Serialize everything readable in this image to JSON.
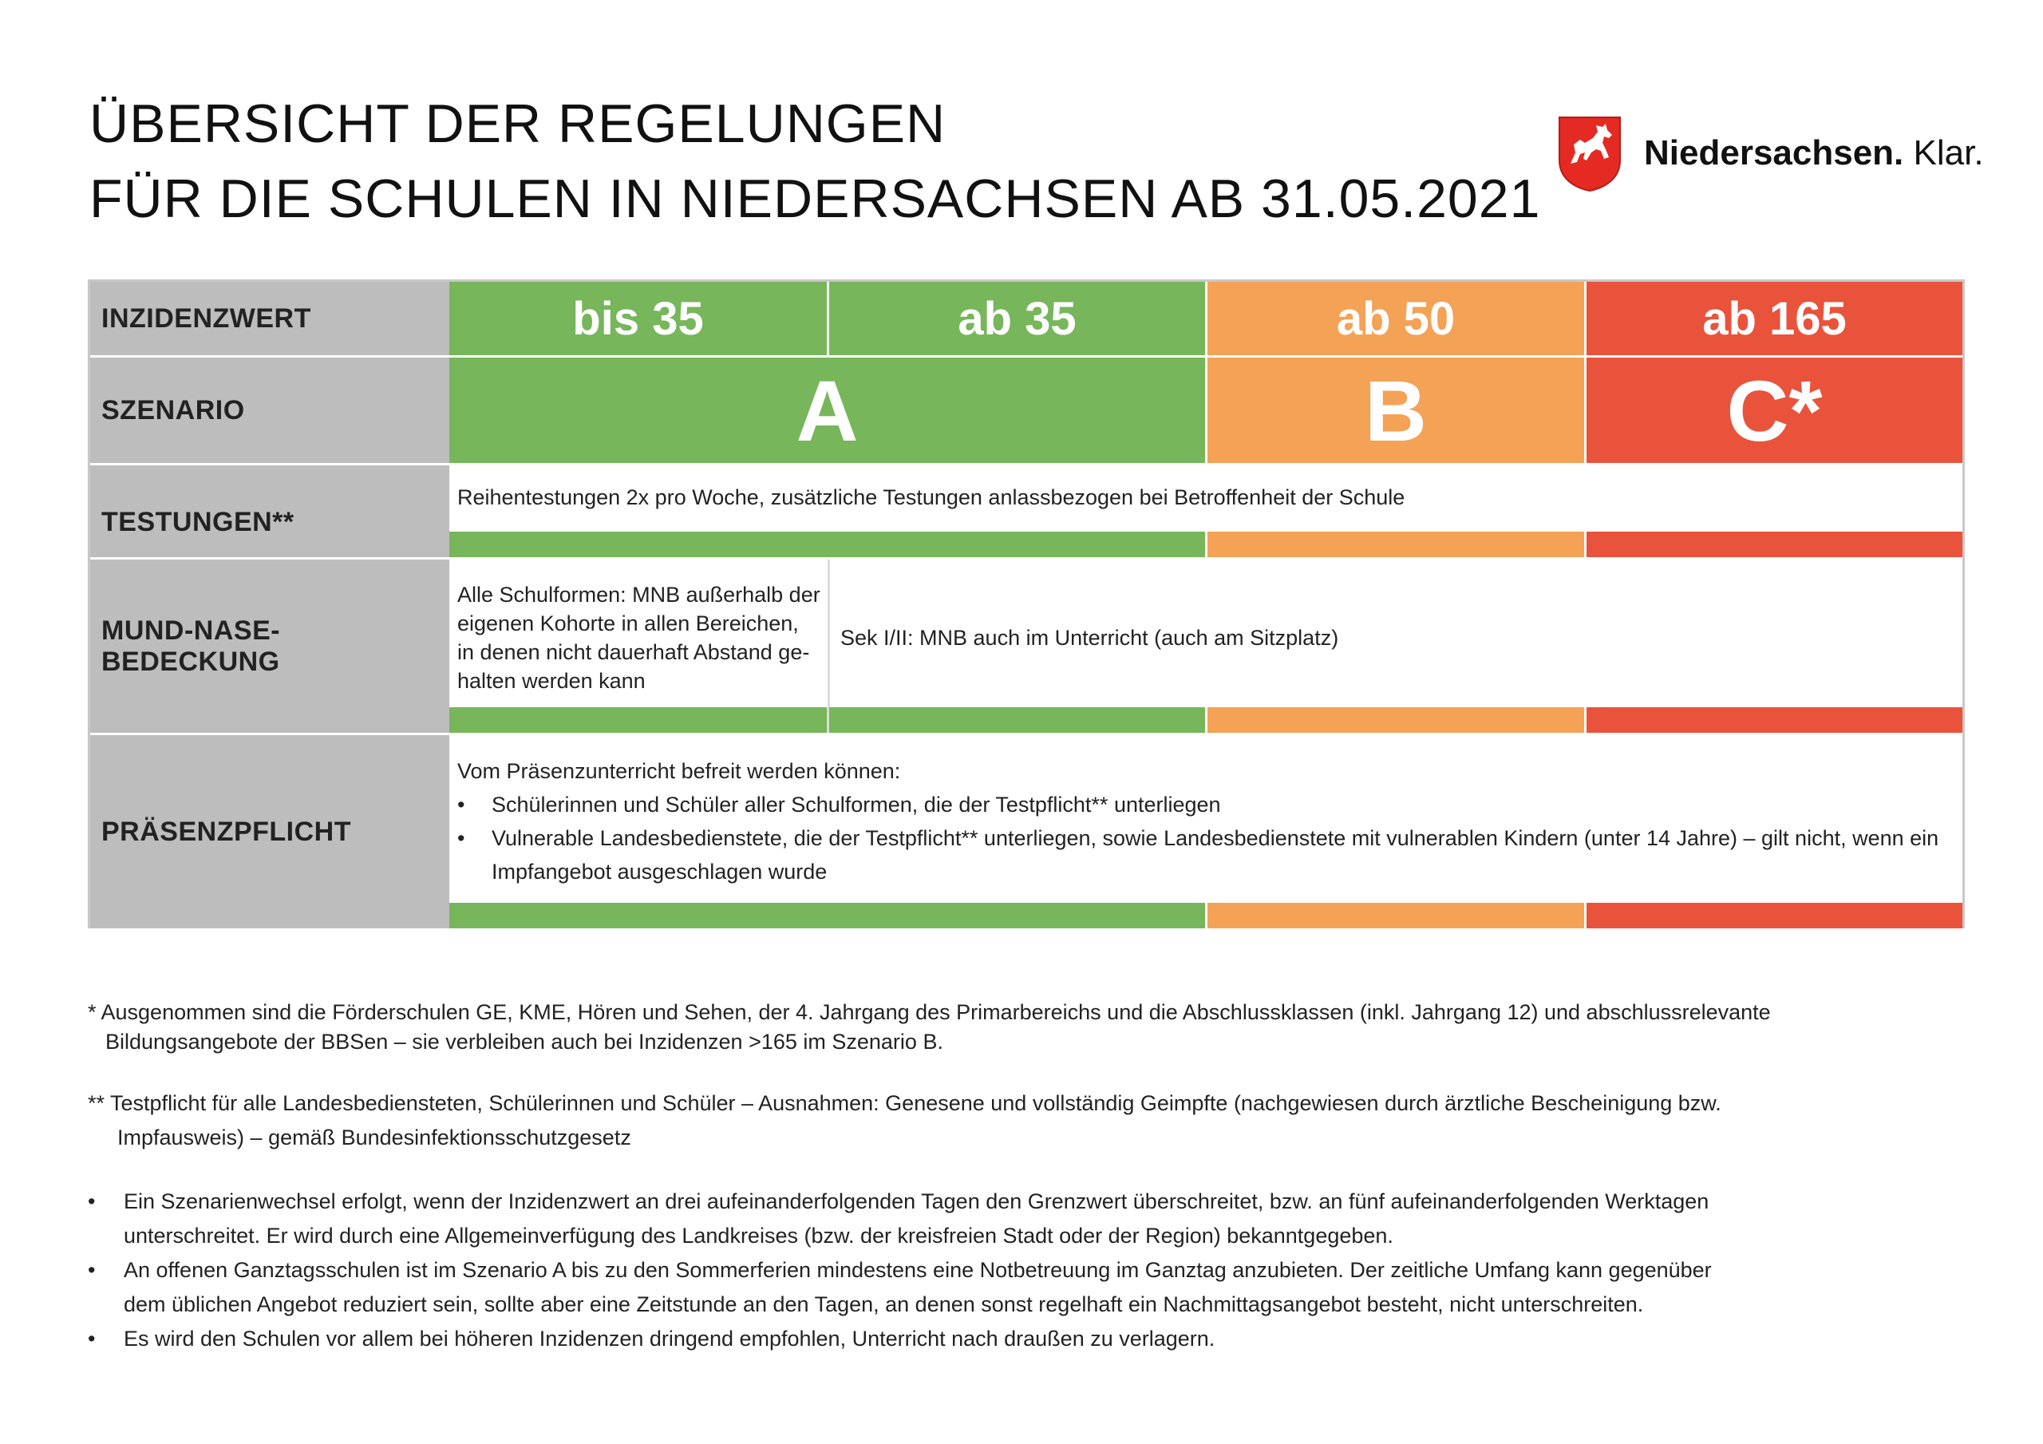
{
  "title": {
    "line1": "ÜBERSICHT DER REGELUNGEN",
    "line2": "FÜR DIE SCHULEN IN NIEDERSACHSEN AB 31.05.2021"
  },
  "logo": {
    "bold": "Niedersachsen.",
    "regular": " Klar."
  },
  "colors": {
    "green": "#77b65b",
    "orange": "#f4a256",
    "red": "#e9533c",
    "label_bg": "#bdbdbd"
  },
  "table": {
    "inzidenz": {
      "label": "INZIDENZWERT",
      "values": [
        "bis 35",
        "ab 35",
        "ab 50",
        "ab 165"
      ]
    },
    "szenario": {
      "label": "SZENARIO",
      "values": [
        "A",
        "B",
        "C*"
      ]
    },
    "testungen": {
      "label": "TESTUNGEN**",
      "text": "Reihentestungen 2x pro Woche, zusätzliche Testungen anlassbezogen bei Betroffenheit der Schule"
    },
    "mnb": {
      "label": "MUND-NASE-BEDECKUNG",
      "left_lines": [
        "Alle Schulformen: MNB außerhalb der",
        "eigenen Kohorte in allen Bereichen,",
        "in denen nicht dauerhaft Abstand ge-",
        "halten werden kann"
      ],
      "right": "Sek I/II: MNB auch im Unterricht (auch am Sitzplatz)"
    },
    "praesenz": {
      "label": "PRÄSENZPFLICHT",
      "intro": "Vom Präsenzunterricht befreit werden können:",
      "bullet1": "Schülerinnen und Schüler aller Schulformen, die der Testpflicht** unterliegen",
      "bullet2_line1": "Vulnerable Landesbedienstete, die der Testpflicht** unterliegen, sowie Landesbedienstete mit vulnerablen Kindern (unter 14 Jahre) – gilt nicht, wenn ein",
      "bullet2_line2": "Impfangebot ausgeschlagen wurde"
    }
  },
  "footnotes": {
    "star1": "* Ausgenommen sind die Förderschulen GE, KME, Hören und Sehen, der 4. Jahrgang des Primarbereichs und die Abschlussklassen (inkl. Jahrgang 12) und abschlussrelevante",
    "star2": "Bildungsangebote der BBSen – sie verbleiben auch bei Inzidenzen >165 im Szenario B.",
    "dstar1": "** Testpflicht für alle Landesbediensteten, Schülerinnen und Schüler – Ausnahmen: Genesene und vollständig Geimpfte (nachgewiesen durch ärztliche Bescheinigung bzw.",
    "dstar2": "Impfausweis) – gemäß Bundesinfektionsschutzgesetz"
  },
  "notes": {
    "b1_l1": "Ein Szenarienwechsel erfolgt, wenn der Inzidenzwert an drei aufeinanderfolgenden Tagen den Grenzwert überschreitet, bzw. an fünf aufeinanderfolgenden Werktagen",
    "b1_l2": "unterschreitet. Er wird durch eine Allgemeinverfügung des Landkreises (bzw. der kreisfreien Stadt oder der Region) bekanntgegeben.",
    "b2_l1": "An offenen Ganztagsschulen ist im Szenario A bis zu den Sommerferien mindestens eine Notbetreuung im Ganztag anzubieten. Der zeitliche Umfang kann gegenüber",
    "b2_l2": "dem üblichen Angebot reduziert sein, sollte aber eine Zeitstunde an den Tagen, an denen sonst regelhaft ein Nachmittagsangebot besteht, nicht unterschreiten.",
    "b3_l1": "Es wird den Schulen vor allem bei höheren Inzidenzen dringend empfohlen, Unterricht nach draußen zu verlagern."
  }
}
